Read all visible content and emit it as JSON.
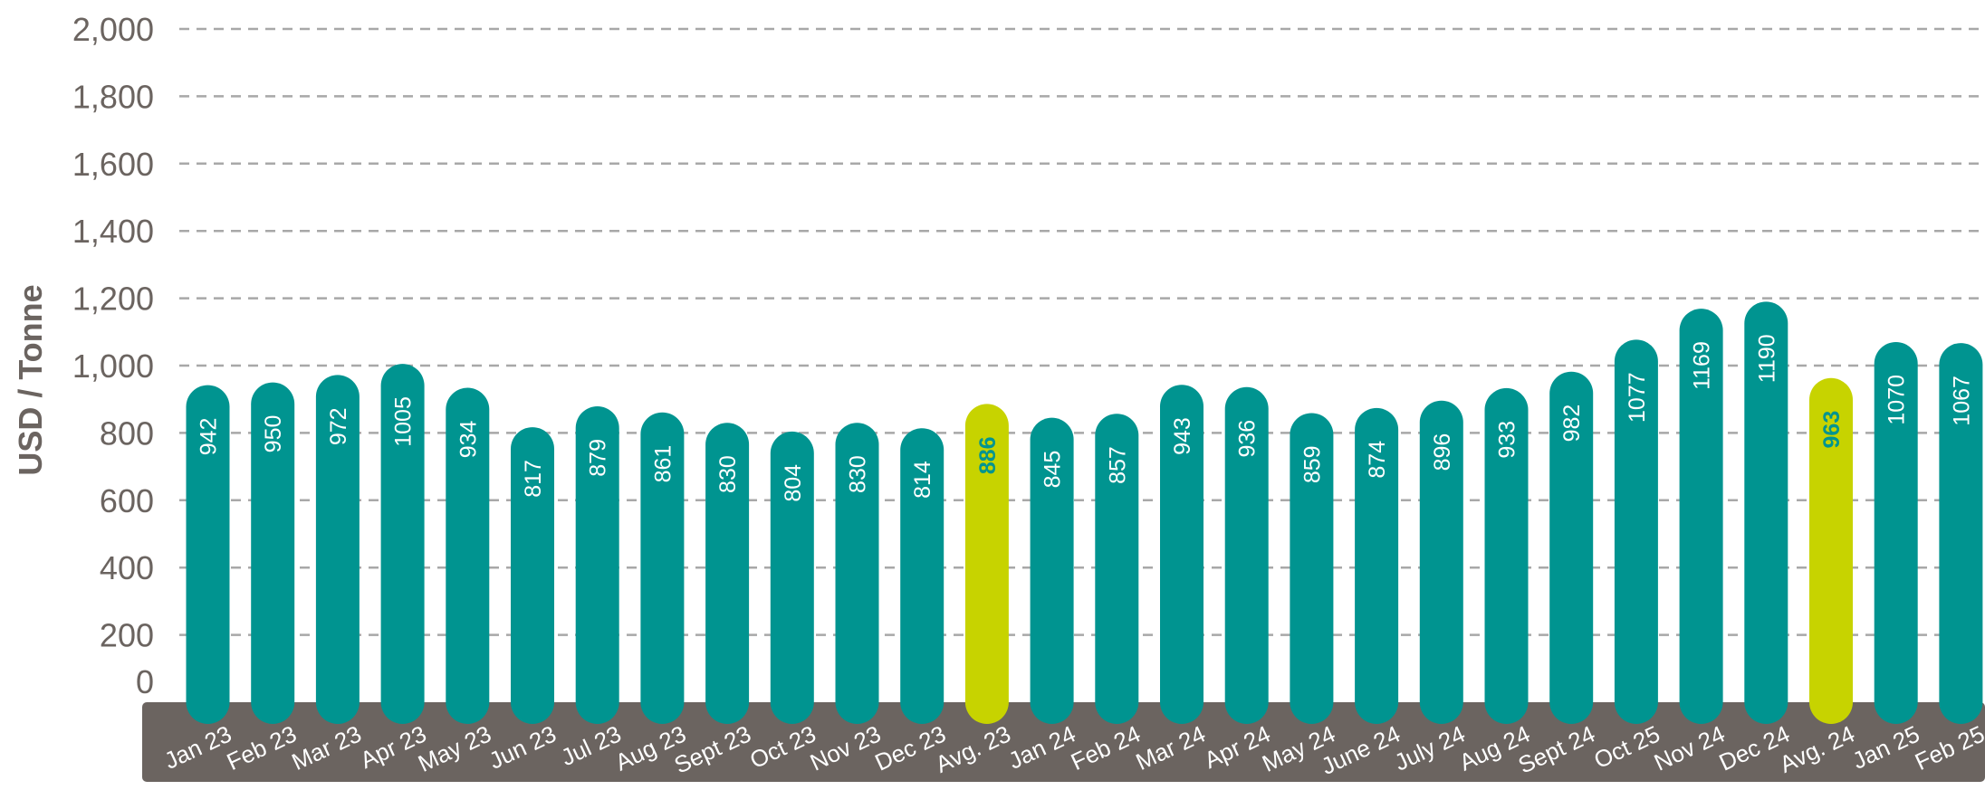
{
  "chart_data": {
    "type": "bar",
    "ylabel": "USD / Tonne",
    "ylim": [
      0,
      2000
    ],
    "yticks": [
      "0",
      "200",
      "400",
      "600",
      "800",
      "1,000",
      "1,200",
      "1,400",
      "1,600",
      "1,800",
      "2,000"
    ],
    "grid": true,
    "categories": [
      "Jan 23",
      "Feb 23",
      "Mar 23",
      "Apr 23",
      "May 23",
      "Jun 23",
      "Jul 23",
      "Aug 23",
      "Sept 23",
      "Oct 23",
      "Nov 23",
      "Dec 23",
      "Avg. 23",
      "Jan 24",
      "Feb 24",
      "Mar 24",
      "Apr 24",
      "May 24",
      "June 24",
      "July 24",
      "Aug 24",
      "Sept 24",
      "Oct 25",
      "Nov 24",
      "Dec 24",
      "Avg. 24",
      "Jan 25",
      "Feb 25"
    ],
    "values": [
      942,
      950,
      972,
      1005,
      934,
      817,
      879,
      861,
      830,
      804,
      830,
      814,
      886,
      845,
      857,
      943,
      936,
      859,
      874,
      896,
      933,
      982,
      1077,
      1169,
      1190,
      963,
      1070,
      1067
    ],
    "highlighted": [
      false,
      false,
      false,
      false,
      false,
      false,
      false,
      false,
      false,
      false,
      false,
      false,
      true,
      false,
      false,
      false,
      false,
      false,
      false,
      false,
      false,
      false,
      false,
      false,
      false,
      true,
      false,
      false
    ],
    "colors": {
      "bar": "#009490",
      "highlight_bar": "#c7d300",
      "highlight_text": "#009490",
      "axis_band": "#6b6460",
      "grid": "#a8a8a8",
      "text": "#6b6460"
    }
  }
}
